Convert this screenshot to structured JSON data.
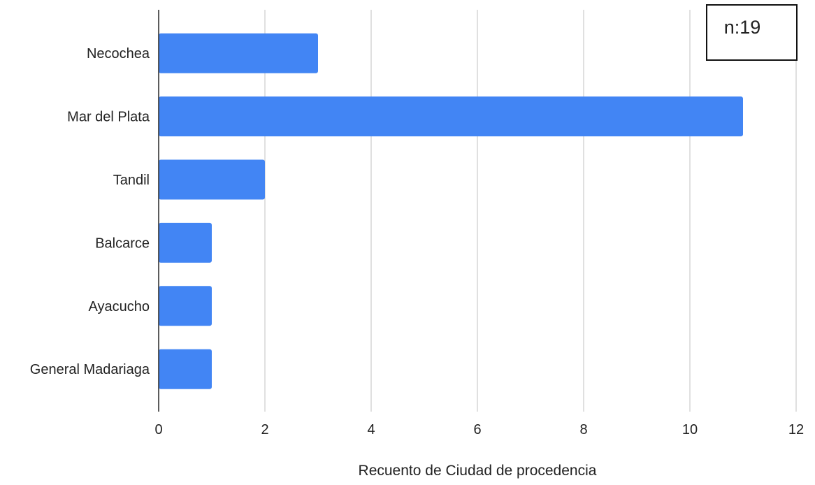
{
  "chart_data": {
    "type": "bar",
    "orientation": "horizontal",
    "categories": [
      "Necochea",
      "Mar del Plata",
      "Tandil",
      "Balcarce",
      "Ayacucho",
      "General Madariaga"
    ],
    "values": [
      3,
      11,
      2,
      1,
      1,
      1
    ],
    "xlabel": "Recuento de Ciudad de procedencia",
    "ylabel": "",
    "xlim": [
      0,
      12
    ],
    "xticks": [
      "0",
      "2",
      "4",
      "6",
      "8",
      "10",
      "12"
    ],
    "grid": "vertical",
    "bar_color": "#4285f4",
    "annotation": "n:19",
    "annotation_position": "top-right"
  }
}
